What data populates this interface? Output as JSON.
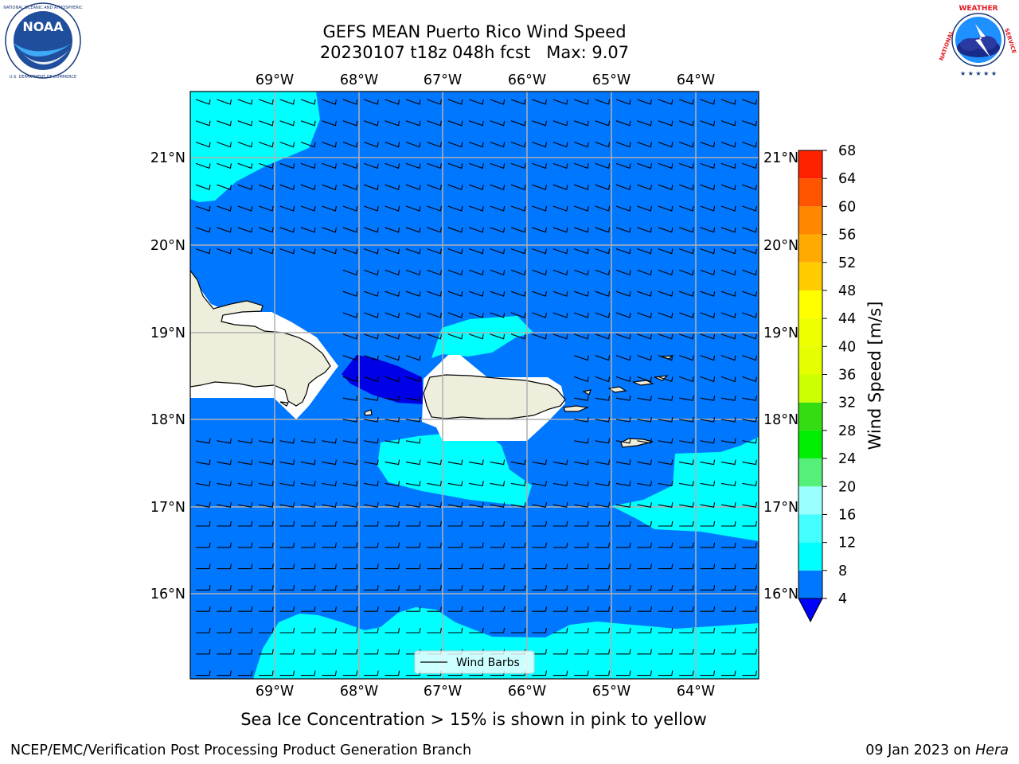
{
  "title": {
    "line1": "GEFS MEAN Puerto Rico Wind Speed",
    "line2": "20230107 t18z 048h fcst   Max: 9.07"
  },
  "logos": {
    "left": {
      "name": "NOAA",
      "ring_text": "NATIONAL OCEANIC AND ATMOSPHERIC ADMINISTRATION · U.S. DEPARTMENT OF COMMERCE"
    },
    "right": {
      "name": "NATIONAL WEATHER SERVICE"
    }
  },
  "map": {
    "region": "Puerto Rico",
    "lon_ticks": [
      "69°W",
      "68°W",
      "67°W",
      "66°W",
      "65°W",
      "64°W"
    ],
    "lat_ticks": [
      "21°N",
      "20°N",
      "19°N",
      "18°N",
      "17°N",
      "16°N"
    ],
    "legend_label": "Wind Barbs",
    "colors": {
      "land": "#eeeedc",
      "mask": "#ffffff",
      "band_4_8": "#0077ff",
      "band_8_12": "#00ffff",
      "below_4": "#0000e6",
      "gridlines": "#b0b0b0",
      "barb": "#000000"
    }
  },
  "colorbar": {
    "label": "Wind Speed [m/s]",
    "levels": [
      "4",
      "8",
      "12",
      "16",
      "20",
      "24",
      "28",
      "32",
      "36",
      "40",
      "44",
      "48",
      "52",
      "56",
      "60",
      "64",
      "68"
    ],
    "colors": [
      "#0077ff",
      "#00ffff",
      "#44ffff",
      "#99ffff",
      "#55f07a",
      "#00ee00",
      "#33dd11",
      "#ccff00",
      "#e6ff00",
      "#eeff00",
      "#ffff00",
      "#ffcc00",
      "#ffaa00",
      "#ff8800",
      "#ff5500",
      "#ff2200"
    ],
    "extend_min_color": "#0000ff"
  },
  "sea_ice_note": "Sea Ice Concentration > 15% is shown in pink to yellow",
  "footer": {
    "left": "NCEP/EMC/Verification Post Processing Product Generation Branch",
    "date": "09 Jan 2023 on ",
    "host": "Hera"
  }
}
